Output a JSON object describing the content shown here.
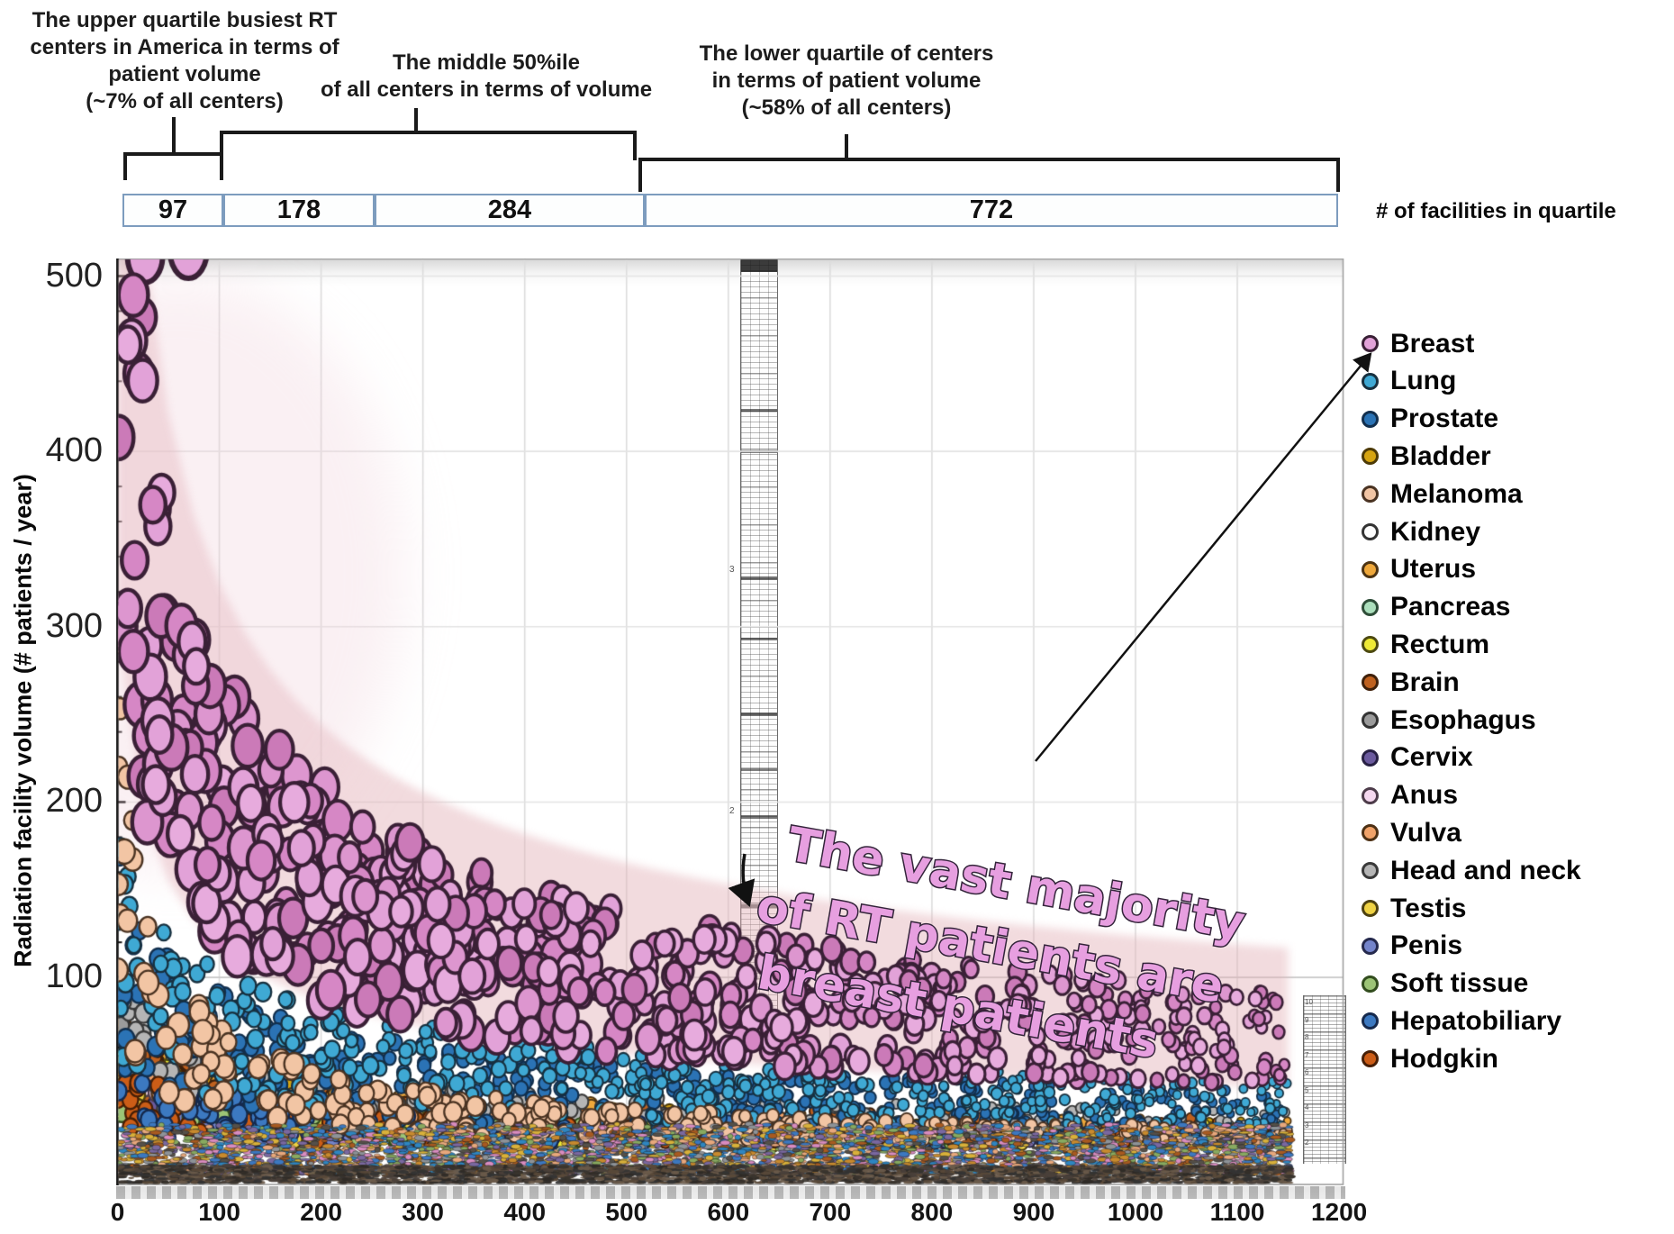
{
  "title_annotations": {
    "upper_quartile": "The upper quartile busiest RT\ncenters in America in terms of\npatient volume\n(~7% of all centers)",
    "middle": "The middle 50%ile\nof all centers in terms of volume",
    "lower_quartile": "The lower quartile of centers\nin terms of patient volume\n(~58% of all centers)"
  },
  "quartile_bar": {
    "cells": [
      "97",
      "178",
      "284",
      "772"
    ],
    "caption": "# of facilities in quartile",
    "border_color": "#7d9cbe"
  },
  "pink_note": {
    "lines": [
      "The vast majority",
      "of RT patients are",
      "breast patients"
    ],
    "fill": "#e79fe0",
    "stroke": "#33243a"
  },
  "chart_data": {
    "type": "scatter",
    "title": "",
    "xlabel": "",
    "ylabel": "Radiation facility volume (# patients / year)",
    "x_ticks": [
      0,
      100,
      200,
      300,
      400,
      500,
      600,
      700,
      800,
      900,
      1000,
      1100,
      1200
    ],
    "y_ticks": [
      100,
      200,
      300,
      400,
      500
    ],
    "x_range": [
      0,
      1206
    ],
    "y_range": [
      0,
      529
    ],
    "x_meaning": "Radiation therapy facilities ranked from busiest to least busy; quartile groups of 97, 178+284 and 772 facilities marked above",
    "grid": "light vertical gridlines every 100 facilities, faint horizontal gridlines every 100 patients/year",
    "legend_position": "right",
    "trend_band": {
      "color": "rgba(226,175,182,0.45)",
      "meaning": "pink wash tracing the decaying breast-cancer point band"
    },
    "series": [
      {
        "name": "Breast",
        "slug": "breast",
        "color": "#e2a2d8",
        "outline": "#3a2036",
        "count": 680,
        "y_at_rank0": 520,
        "x0": 18,
        "decay_exp": 0.5,
        "jitter": 0.42,
        "xk": 1,
        "r0": 16,
        "r1": 6.5,
        "ry0": 1.42,
        "ry1": 1.15,
        "sw0": 4.5,
        "sw1": 2.6,
        "shades": [
          "#e7abdd",
          "#dd96cf",
          "#d687c5",
          "#cb7ab8",
          "#e2a2d8"
        ]
      },
      {
        "name": "Lung",
        "slug": "lung",
        "color": "#3fa9d4",
        "outline": "#17303f",
        "count": 430,
        "y_at_rank0": 130
      },
      {
        "name": "Prostate",
        "slug": "prostate",
        "color": "#2b73b5",
        "outline": "#122f4d",
        "count": 420,
        "y_at_rank0": 112
      },
      {
        "name": "Bladder",
        "slug": "bladder",
        "color": "#d6a410",
        "outline": "#4d3a06",
        "count": 190,
        "y_at_rank0": 55
      },
      {
        "name": "Melanoma",
        "slug": "melanoma",
        "color": "#f2c5a4",
        "outline": "#4a3322",
        "count": 300,
        "y_at_rank0": 205,
        "x0": 14,
        "decay_exp": 0.7,
        "xk": 1.25,
        "r0": 10.5,
        "r1": 5
      },
      {
        "name": "Kidney",
        "slug": "kidney",
        "color": "#fdfdfd",
        "outline": "#333333",
        "count": 160,
        "y_at_rank0": 45
      },
      {
        "name": "Uterus",
        "slug": "uterus",
        "color": "#efa83b",
        "outline": "#4d3413",
        "count": 200,
        "y_at_rank0": 60
      },
      {
        "name": "Pancreas",
        "slug": "pancreas",
        "color": "#abdfbc",
        "outline": "#2e4d38",
        "count": 150,
        "y_at_rank0": 40
      },
      {
        "name": "Rectum",
        "slug": "rectum",
        "color": "#eeea35",
        "outline": "#4d4a10",
        "count": 180,
        "y_at_rank0": 50
      },
      {
        "name": "Brain",
        "slug": "brain",
        "color": "#bf611f",
        "outline": "#3f200a",
        "count": 230,
        "y_at_rank0": 60
      },
      {
        "name": "Esophagus",
        "slug": "esophagus",
        "color": "#9b9b9b",
        "outline": "#333333",
        "count": 190,
        "y_at_rank0": 50
      },
      {
        "name": "Cervix",
        "slug": "cervix",
        "color": "#6b5a9e",
        "outline": "#272043",
        "count": 160,
        "y_at_rank0": 45
      },
      {
        "name": "Anus",
        "slug": "anus",
        "color": "#f5d8ef",
        "outline": "#4d3c4a",
        "count": 130,
        "y_at_rank0": 35
      },
      {
        "name": "Vulva",
        "slug": "vulva",
        "color": "#f0a269",
        "outline": "#4d3014",
        "count": 150,
        "y_at_rank0": 48
      },
      {
        "name": "Head and neck",
        "slug": "head-and-neck",
        "color": "#b5b5b5",
        "outline": "#3a3a3a",
        "count": 230,
        "y_at_rank0": 75
      },
      {
        "name": "Testis",
        "slug": "testis",
        "color": "#efd243",
        "outline": "#4d4110",
        "count": 120,
        "y_at_rank0": 30
      },
      {
        "name": "Penis",
        "slug": "penis",
        "color": "#7484cb",
        "outline": "#25294d",
        "count": 110,
        "y_at_rank0": 28
      },
      {
        "name": "Soft tissue",
        "slug": "soft-tissue",
        "color": "#9cc476",
        "outline": "#324d1e",
        "count": 130,
        "y_at_rank0": 34
      },
      {
        "name": "Hepatobiliary",
        "slug": "hepatobiliary",
        "color": "#3c79c1",
        "outline": "#15294d",
        "count": 170,
        "y_at_rank0": 42
      },
      {
        "name": "Hodgkin",
        "slug": "hodgkin",
        "color": "#cc5d17",
        "outline": "#471f06",
        "count": 140,
        "y_at_rank0": 36
      }
    ],
    "bottom_band": {
      "meaning": "dense overlapping low-volume points of all cancer types hugging the x-axis",
      "colors": [
        "#c88a2e",
        "#a85a20",
        "#8e9398",
        "#d9b13a",
        "#7a68a0",
        "#88aa60",
        "#3c78c0",
        "#d98cc0",
        "#e8a87c",
        "#555049",
        "#2e86c1"
      ]
    },
    "dark_axis_band": {
      "meaning": "nearly black compressed strip of points at the very bottom of the plot",
      "colors": [
        "#3a342e",
        "#4a4039",
        "#2f2a26",
        "#5a4a3a",
        "#6b5b4b",
        "#333333"
      ]
    }
  },
  "artifacts": {
    "ruler1_labels": [
      "3",
      "2"
    ],
    "ruler2_labels": [
      "10",
      "9",
      "8",
      "7",
      "6",
      "5",
      "4",
      "3",
      "2"
    ]
  }
}
